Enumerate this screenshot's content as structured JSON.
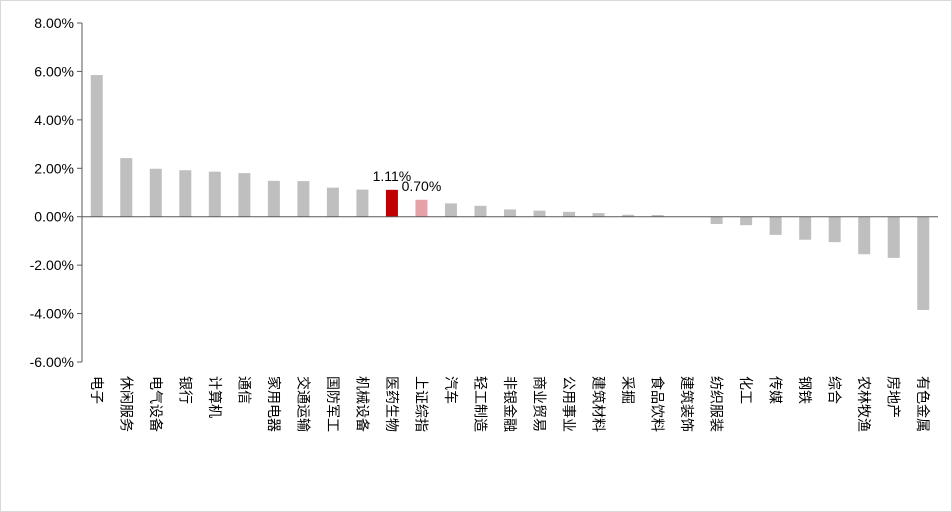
{
  "chart_data": {
    "type": "bar",
    "categories": [
      "电子",
      "休闲服务",
      "电气设备",
      "银行",
      "计算机",
      "通信",
      "家用电器",
      "交通运输",
      "国防军工",
      "机械设备",
      "医药生物",
      "上证综指",
      "汽车",
      "轻工制造",
      "非银金融",
      "商业贸易",
      "公用事业",
      "建筑材料",
      "采掘",
      "食品饮料",
      "建筑装饰",
      "纺织服装",
      "化工",
      "传媒",
      "钢铁",
      "综合",
      "农林牧渔",
      "房地产",
      "有色金属"
    ],
    "values": [
      5.85,
      2.42,
      1.98,
      1.92,
      1.86,
      1.8,
      1.48,
      1.47,
      1.2,
      1.12,
      1.11,
      0.7,
      0.55,
      0.45,
      0.3,
      0.25,
      0.2,
      0.15,
      0.08,
      0.07,
      0.0,
      -0.3,
      -0.35,
      -0.75,
      -0.95,
      -1.05,
      -1.55,
      -1.7,
      -3.85
    ],
    "highlight": {
      "医药生物": "#c00000",
      "上证综指": "#e6a0a8"
    },
    "default_color": "#bfbfbf",
    "data_labels": [
      {
        "category": "医药生物",
        "text": "1.11%"
      },
      {
        "category": "上证综指",
        "text": "0.70%"
      }
    ],
    "ylim": [
      -6,
      8
    ],
    "yticks": [
      "-6.00%",
      "-4.00%",
      "-2.00%",
      "0.00%",
      "2.00%",
      "4.00%",
      "6.00%",
      "8.00%"
    ],
    "ytick_values": [
      -6,
      -4,
      -2,
      0,
      2,
      4,
      6,
      8
    ],
    "title": "",
    "xlabel": "",
    "ylabel": "",
    "grid": false,
    "legend": "none"
  }
}
